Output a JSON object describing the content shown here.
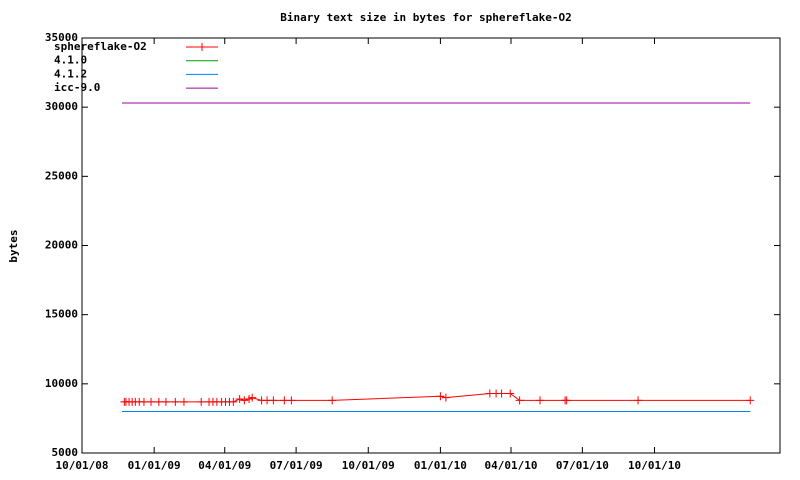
{
  "chart_data": {
    "type": "line",
    "title": "Binary text size in bytes for sphereflake-O2",
    "y_label": "bytes",
    "xlim": [
      "2008-10-01",
      "2011-03-10"
    ],
    "xticks": [
      {
        "value": "2008-10-01",
        "label": "10/01/08"
      },
      {
        "value": "2009-01-01",
        "label": "01/01/09"
      },
      {
        "value": "2009-04-01",
        "label": "04/01/09"
      },
      {
        "value": "2009-07-01",
        "label": "07/01/09"
      },
      {
        "value": "2009-10-01",
        "label": "10/01/09"
      },
      {
        "value": "2010-01-01",
        "label": "01/01/10"
      },
      {
        "value": "2010-04-01",
        "label": "04/01/10"
      },
      {
        "value": "2010-07-01",
        "label": "07/01/10"
      },
      {
        "value": "2010-10-01",
        "label": "10/01/10"
      }
    ],
    "ylim": [
      5000,
      35000
    ],
    "yticks": [
      5000,
      10000,
      15000,
      20000,
      25000,
      30000,
      35000
    ],
    "legend": "top-left",
    "series": [
      {
        "name": "sphereflake-O2",
        "color": "#ff0000",
        "marker": "+",
        "x": [
          "2008-11-24",
          "2008-11-26",
          "2008-11-30",
          "2008-12-04",
          "2008-12-08",
          "2008-12-13",
          "2008-12-19",
          "2008-12-28",
          "2009-01-07",
          "2009-01-16",
          "2009-01-28",
          "2009-02-08",
          "2009-03-02",
          "2009-03-12",
          "2009-03-17",
          "2009-03-22",
          "2009-03-28",
          "2009-04-02",
          "2009-04-07",
          "2009-04-12",
          "2009-04-20",
          "2009-04-26",
          "2009-05-02",
          "2009-05-06",
          "2009-05-18",
          "2009-05-25",
          "2009-06-02",
          "2009-06-16",
          "2009-06-25",
          "2009-08-16",
          "2010-01-01",
          "2010-01-08",
          "2010-03-05",
          "2010-03-13",
          "2010-03-20",
          "2010-03-31",
          "2010-04-12",
          "2010-05-08",
          "2010-06-09",
          "2010-06-11",
          "2010-09-10",
          "2011-01-31"
        ],
        "values": [
          8700,
          8700,
          8700,
          8700,
          8700,
          8700,
          8700,
          8700,
          8700,
          8700,
          8700,
          8700,
          8700,
          8700,
          8700,
          8700,
          8700,
          8700,
          8700,
          8700,
          8900,
          8800,
          8900,
          9000,
          8800,
          8800,
          8800,
          8800,
          8800,
          8800,
          9100,
          9000,
          9300,
          9300,
          9300,
          9300,
          8800,
          8800,
          8800,
          8800,
          8800,
          8800
        ]
      },
      {
        "name": "4.1.0",
        "color": "#00a000",
        "x": [
          "2008-11-21",
          "2011-01-31"
        ],
        "values": [
          8000,
          8000
        ]
      },
      {
        "name": "4.1.2",
        "color": "#0080ff",
        "x": [
          "2008-11-21",
          "2011-01-31"
        ],
        "values": [
          8000,
          8000
        ]
      },
      {
        "name": "icc-9.0",
        "color": "#a000a0",
        "x": [
          "2008-11-21",
          "2011-01-31"
        ],
        "values": [
          30300,
          30300
        ]
      }
    ]
  }
}
